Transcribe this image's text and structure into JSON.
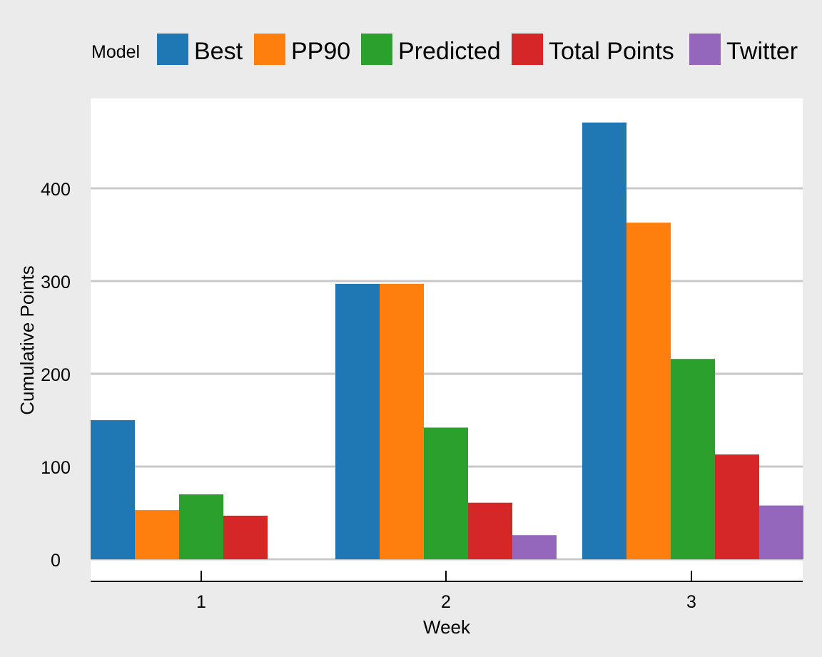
{
  "chart_data": {
    "type": "bar",
    "title": "",
    "xlabel": "Week",
    "ylabel": "Cumulative Points",
    "legend_title": "Model",
    "legend_position": "top",
    "grid": true,
    "categories": [
      "1",
      "2",
      "3"
    ],
    "ylim": [
      0,
      480
    ],
    "yticks": [
      0,
      100,
      200,
      300,
      400
    ],
    "series": [
      {
        "name": "Best",
        "color": "#1f77b4",
        "values": [
          150,
          297,
          471
        ]
      },
      {
        "name": "PP90",
        "color": "#ff7f0e",
        "values": [
          53,
          297,
          363
        ]
      },
      {
        "name": "Predicted",
        "color": "#2ca02c",
        "values": [
          70,
          142,
          216
        ]
      },
      {
        "name": "Total Points",
        "color": "#d62728",
        "values": [
          47,
          61,
          113
        ]
      },
      {
        "name": "Twitter",
        "color": "#9467bd",
        "values": [
          0,
          26,
          58
        ]
      }
    ]
  }
}
